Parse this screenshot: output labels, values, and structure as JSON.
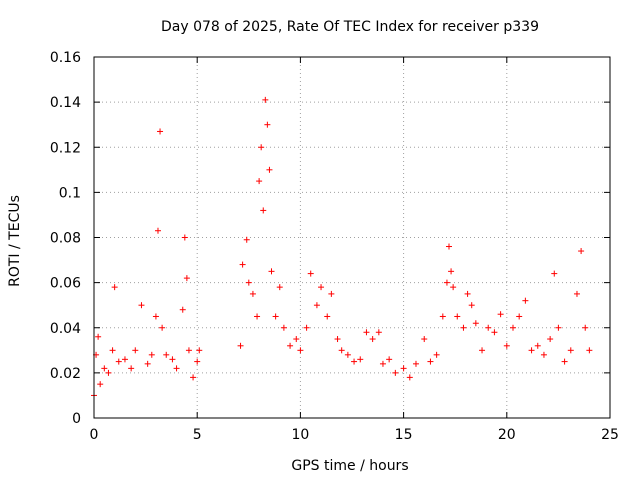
{
  "chart_data": {
    "type": "scatter",
    "title": "Day 078 of 2025, Rate Of TEC Index for receiver p339",
    "xlabel": "GPS time / hours",
    "ylabel": "ROTI / TECUs",
    "xlim": [
      0,
      25
    ],
    "ylim": [
      0,
      0.16
    ],
    "xticks": [
      0,
      5,
      10,
      15,
      20,
      25
    ],
    "xtick_labels": [
      "0",
      "5",
      "10",
      "15",
      "20",
      "25"
    ],
    "yticks": [
      0,
      0.02,
      0.04,
      0.06,
      0.08,
      0.1,
      0.12,
      0.14,
      0.16
    ],
    "ytick_labels": [
      "0",
      "0.02",
      "0.04",
      "0.06",
      "0.08",
      "0.1",
      "0.12",
      "0.14",
      "0.16"
    ],
    "grid": true,
    "marker": "+",
    "marker_color": "#ff0000",
    "series": [
      {
        "x": [
          0.0,
          0.1,
          0.2,
          0.3,
          0.5,
          0.7,
          0.9,
          1.0,
          1.2,
          1.5,
          1.8,
          2.0,
          2.3,
          2.6,
          2.8,
          3.0,
          3.1,
          3.2,
          3.3,
          3.5,
          3.8,
          4.0,
          4.3,
          4.4,
          4.5,
          4.6,
          4.8,
          5.0,
          5.1,
          7.1,
          7.2,
          7.4,
          7.5,
          7.7,
          7.9,
          8.0,
          8.1,
          8.2,
          8.3,
          8.4,
          8.5,
          8.6,
          8.8,
          9.0,
          9.2,
          9.5,
          9.8,
          10.0,
          10.3,
          10.5,
          10.8,
          11.0,
          11.3,
          11.5,
          11.8,
          12.0,
          12.3,
          12.6,
          12.9,
          13.2,
          13.5,
          13.8,
          14.0,
          14.3,
          14.6,
          15.0,
          15.3,
          15.6,
          16.0,
          16.3,
          16.6,
          16.9,
          17.1,
          17.2,
          17.3,
          17.4,
          17.6,
          17.9,
          18.1,
          18.3,
          18.5,
          18.8,
          19.1,
          19.4,
          19.7,
          20.0,
          20.3,
          20.6,
          20.9,
          21.2,
          21.5,
          21.8,
          22.1,
          22.3,
          22.5,
          22.8,
          23.1,
          23.4,
          23.6,
          23.8,
          24.0
        ],
        "y": [
          0.01,
          0.028,
          0.036,
          0.015,
          0.022,
          0.02,
          0.03,
          0.058,
          0.025,
          0.026,
          0.022,
          0.03,
          0.05,
          0.024,
          0.028,
          0.045,
          0.083,
          0.127,
          0.04,
          0.028,
          0.026,
          0.022,
          0.048,
          0.08,
          0.062,
          0.03,
          0.018,
          0.025,
          0.03,
          0.032,
          0.068,
          0.079,
          0.06,
          0.055,
          0.045,
          0.105,
          0.12,
          0.092,
          0.141,
          0.13,
          0.11,
          0.065,
          0.045,
          0.058,
          0.04,
          0.032,
          0.035,
          0.03,
          0.04,
          0.064,
          0.05,
          0.058,
          0.045,
          0.055,
          0.035,
          0.03,
          0.028,
          0.025,
          0.026,
          0.038,
          0.035,
          0.038,
          0.024,
          0.026,
          0.02,
          0.022,
          0.018,
          0.024,
          0.035,
          0.025,
          0.028,
          0.045,
          0.06,
          0.076,
          0.065,
          0.058,
          0.045,
          0.04,
          0.055,
          0.05,
          0.042,
          0.03,
          0.04,
          0.038,
          0.046,
          0.032,
          0.04,
          0.045,
          0.052,
          0.03,
          0.032,
          0.028,
          0.035,
          0.064,
          0.04,
          0.025,
          0.03,
          0.055,
          0.074,
          0.04,
          0.03
        ]
      }
    ]
  }
}
